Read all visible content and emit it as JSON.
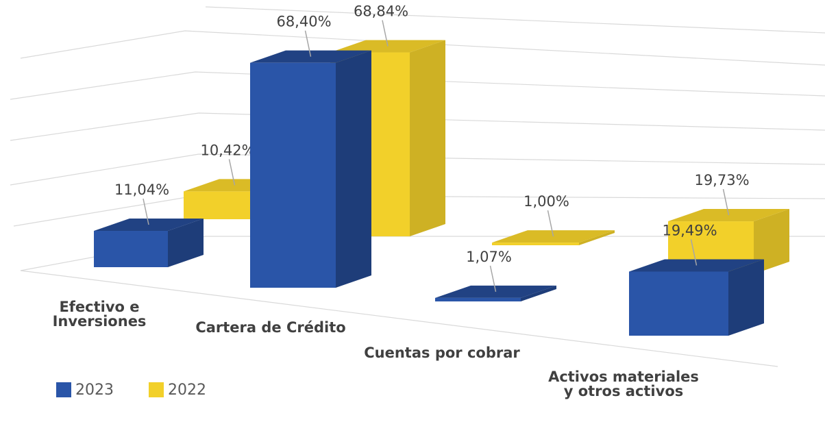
{
  "chart_data": {
    "type": "bar3d",
    "categories": [
      "Efectivo e Inversiones",
      "Cartera de Crédito",
      "Cuentas por cobrar",
      "Activos materiales y otros activos"
    ],
    "series": [
      {
        "name": "2023",
        "color": "#2a55a8",
        "values": [
          11.04,
          68.4,
          1.07,
          19.49
        ],
        "value_labels": [
          "11,04%",
          "68,40%",
          "1,07%",
          "19,49%"
        ]
      },
      {
        "name": "2022",
        "color": "#f2d02a",
        "values": [
          10.42,
          68.84,
          1.0,
          19.73
        ],
        "value_labels": [
          "10,42%",
          "68,84%",
          "1,00%",
          "19,73%"
        ]
      }
    ],
    "ylim": [
      0,
      80
    ],
    "grid": true,
    "legend": "bottom-left"
  }
}
